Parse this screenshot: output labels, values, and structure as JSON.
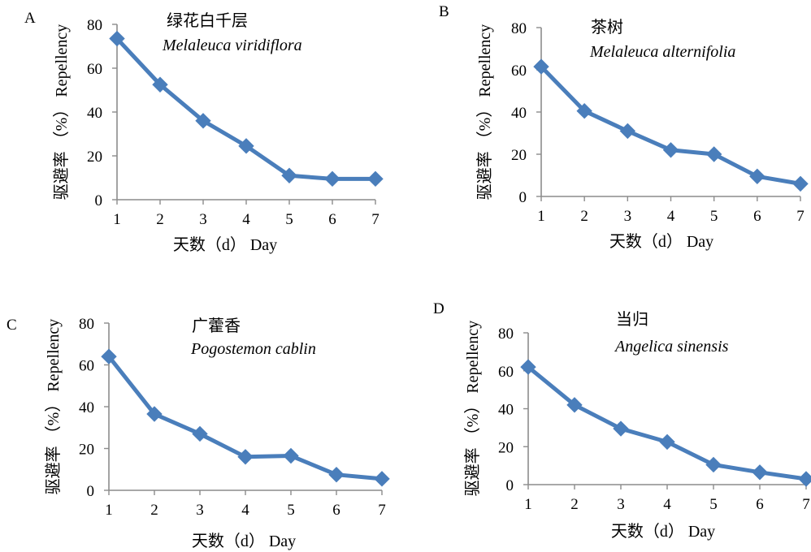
{
  "chart_data": [
    {
      "type": "line",
      "panel_label": "A",
      "title_cn": "绿花白千层",
      "title_latin": "Melaleuca viridiflora",
      "xlabel": "天数（d） Day",
      "ylabel": "驱避率 （%） Repellency",
      "categories": [
        "1",
        "2",
        "3",
        "4",
        "5",
        "6",
        "7"
      ],
      "values": [
        73.5,
        52.5,
        36,
        24.5,
        11,
        9.5,
        9.5
      ],
      "yticks": [
        "0",
        "20",
        "40",
        "60",
        "80"
      ],
      "ylim": [
        0,
        80
      ],
      "color": "#4a7ebb"
    },
    {
      "type": "line",
      "panel_label": "B",
      "title_cn": "茶树",
      "title_latin": "Melaleuca alternifolia",
      "xlabel": "天数（d） Day",
      "ylabel": "驱避率 （%） Repellency",
      "categories": [
        "1",
        "2",
        "3",
        "4",
        "5",
        "6",
        "7"
      ],
      "values": [
        61.5,
        40.5,
        31,
        22,
        20,
        9.5,
        6
      ],
      "yticks": [
        "0",
        "20",
        "40",
        "60",
        "80"
      ],
      "ylim": [
        0,
        80
      ],
      "color": "#4a7ebb"
    },
    {
      "type": "line",
      "panel_label": "C",
      "title_cn": "广藿香",
      "title_latin": "Pogostemon cablin",
      "xlabel": "天数（d） Day",
      "ylabel": "驱避率 （%） Repellency",
      "categories": [
        "1",
        "2",
        "3",
        "4",
        "5",
        "6",
        "7"
      ],
      "values": [
        64,
        36.5,
        27,
        16,
        16.5,
        7.5,
        5.5
      ],
      "yticks": [
        "0",
        "20",
        "40",
        "60",
        "80"
      ],
      "ylim": [
        0,
        80
      ],
      "color": "#4a7ebb"
    },
    {
      "type": "line",
      "panel_label": "D",
      "title_cn": "当归",
      "title_latin": "Angelica sinensis",
      "xlabel": "天数（d） Day",
      "ylabel": "驱避率 （%） Repellency",
      "categories": [
        "1",
        "2",
        "3",
        "4",
        "5",
        "6",
        "7"
      ],
      "values": [
        62,
        42,
        29.5,
        22.5,
        10.5,
        6.5,
        3
      ],
      "yticks": [
        "0",
        "20",
        "40",
        "60",
        "80"
      ],
      "ylim": [
        0,
        80
      ],
      "color": "#4a7ebb"
    }
  ]
}
